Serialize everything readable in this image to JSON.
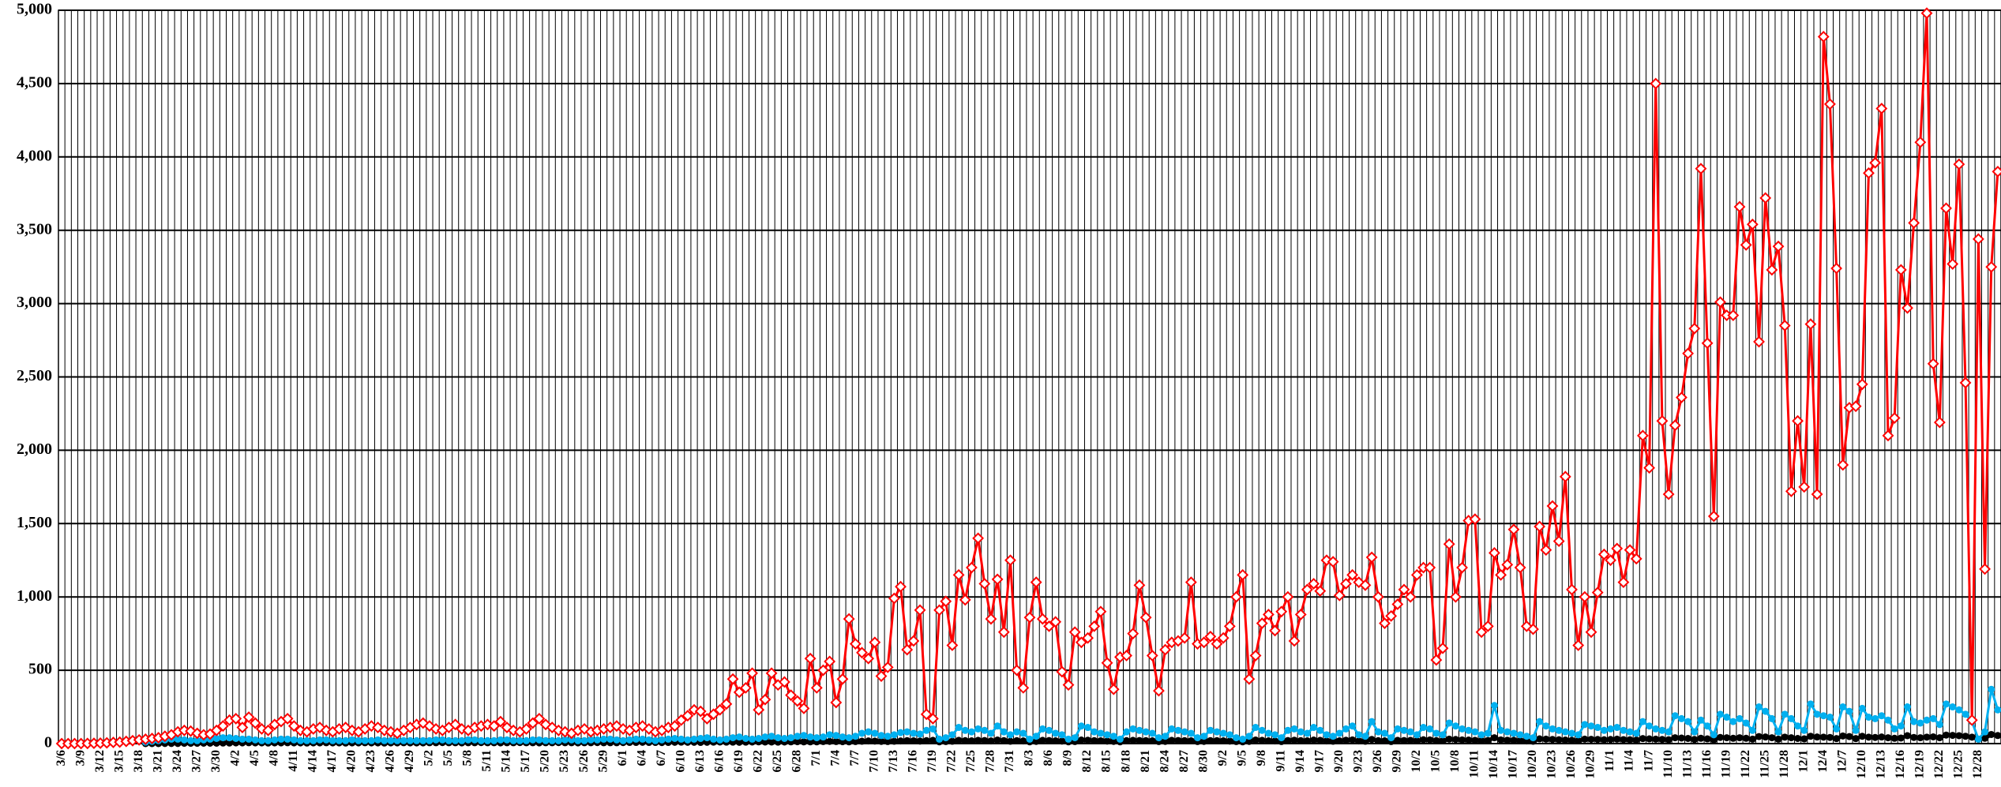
{
  "chart_data": {
    "type": "line",
    "categories": [
      "3/6",
      null,
      null,
      "3/9",
      null,
      null,
      "3/12",
      null,
      null,
      "3/15",
      null,
      null,
      "3/18",
      null,
      null,
      "3/21",
      null,
      null,
      "3/24",
      null,
      null,
      "3/27",
      null,
      null,
      "3/30",
      null,
      null,
      "4/2",
      null,
      null,
      "4/5",
      null,
      null,
      "4/8",
      null,
      null,
      "4/11",
      null,
      null,
      "4/14",
      null,
      null,
      "4/17",
      null,
      null,
      "4/20",
      null,
      null,
      "4/23",
      null,
      null,
      "4/26",
      null,
      null,
      "4/29",
      null,
      null,
      "5/2",
      null,
      null,
      "5/5",
      null,
      null,
      "5/8",
      null,
      null,
      "5/11",
      null,
      null,
      "5/14",
      null,
      null,
      "5/17",
      null,
      null,
      "5/20",
      null,
      null,
      "5/23",
      null,
      null,
      "5/26",
      null,
      null,
      "5/29",
      null,
      null,
      "6/1",
      null,
      null,
      "6/4",
      null,
      null,
      "6/7",
      null,
      null,
      "6/10",
      null,
      null,
      "6/13",
      null,
      null,
      "6/16",
      null,
      null,
      "6/19",
      null,
      null,
      "6/22",
      null,
      null,
      "6/25",
      null,
      null,
      "6/28",
      null,
      null,
      "7/1",
      null,
      null,
      "7/4",
      null,
      null,
      "7/7",
      null,
      null,
      "7/10",
      null,
      null,
      "7/13",
      null,
      null,
      "7/16",
      null,
      null,
      "7/19",
      null,
      null,
      "7/22",
      null,
      null,
      "7/25",
      null,
      null,
      "7/28",
      null,
      null,
      "7/31",
      null,
      null,
      "8/3",
      null,
      null,
      "8/6",
      null,
      null,
      "8/9",
      null,
      null,
      "8/12",
      null,
      null,
      "8/15",
      null,
      null,
      "8/18",
      null,
      null,
      "8/21",
      null,
      null,
      "8/24",
      null,
      null,
      "8/27",
      null,
      null,
      "8/30",
      null,
      null,
      "9/2",
      null,
      null,
      "9/5",
      null,
      null,
      "9/8",
      null,
      null,
      "9/11",
      null,
      null,
      "9/14",
      null,
      null,
      "9/17",
      null,
      null,
      "9/20",
      null,
      null,
      "9/23",
      null,
      null,
      "9/26",
      null,
      null,
      "9/29",
      null,
      null,
      "10/2",
      null,
      null,
      "10/5",
      null,
      null,
      "10/8",
      null,
      null,
      "10/11",
      null,
      null,
      "10/14",
      null,
      null,
      "10/17",
      null,
      null,
      "10/20",
      null,
      null,
      "10/23",
      null,
      null,
      "10/26",
      null,
      null,
      "10/29",
      null,
      null,
      "11/1",
      null,
      null,
      "11/4",
      null,
      null,
      "11/7",
      null,
      null,
      "11/10",
      null,
      null,
      "11/13",
      null,
      null,
      "11/16",
      null,
      null,
      "11/19",
      null,
      null,
      "11/22",
      null,
      null,
      "11/25",
      null,
      null,
      "11/28",
      null,
      null,
      "12/1",
      null,
      null,
      "12/4",
      null,
      null,
      "12/7",
      null,
      null,
      "12/10",
      null,
      null,
      "12/13",
      null,
      null,
      "12/16",
      null,
      null,
      "12/19",
      null,
      null,
      "12/22",
      null,
      null,
      "12/25",
      null,
      null,
      "12/28",
      null,
      null,
      null
    ],
    "series": [
      {
        "color": "#ff0000",
        "marker": "diamond",
        "values": [
          0,
          0,
          0,
          0,
          1,
          2,
          3,
          5,
          8,
          10,
          15,
          20,
          25,
          30,
          35,
          40,
          50,
          60,
          80,
          90,
          85,
          70,
          60,
          65,
          90,
          120,
          160,
          170,
          110,
          180,
          140,
          100,
          90,
          130,
          150,
          170,
          120,
          90,
          80,
          100,
          110,
          90,
          80,
          100,
          110,
          90,
          80,
          100,
          120,
          110,
          90,
          80,
          70,
          90,
          110,
          130,
          140,
          120,
          100,
          90,
          110,
          130,
          100,
          90,
          110,
          120,
          130,
          120,
          150,
          110,
          90,
          80,
          100,
          140,
          170,
          130,
          110,
          90,
          80,
          70,
          90,
          100,
          80,
          90,
          100,
          110,
          120,
          100,
          90,
          110,
          120,
          100,
          80,
          90,
          110,
          120,
          160,
          190,
          230,
          220,
          170,
          200,
          230,
          270,
          440,
          350,
          380,
          480,
          230,
          300,
          480,
          400,
          420,
          330,
          290,
          240,
          580,
          380,
          500,
          560,
          280,
          440,
          850,
          680,
          620,
          580,
          690,
          460,
          520,
          990,
          1070,
          640,
          700,
          910,
          200,
          170,
          910,
          970,
          670,
          1150,
          980,
          1200,
          1400,
          1090,
          850,
          1120,
          760,
          1250,
          500,
          380,
          860,
          1100,
          850,
          800,
          830,
          490,
          400,
          760,
          690,
          720,
          800,
          900,
          550,
          370,
          590,
          600,
          750,
          1080,
          860,
          600,
          360,
          640,
          690,
          700,
          720,
          1100,
          680,
          690,
          730,
          680,
          720,
          800,
          1000,
          1150,
          440,
          600,
          820,
          880,
          770,
          900,
          1000,
          700,
          880,
          1050,
          1090,
          1040,
          1250,
          1240,
          1010,
          1090,
          1150,
          1100,
          1080,
          1270,
          1000,
          820,
          870,
          950,
          1050,
          1000,
          1150,
          1200,
          1200,
          570,
          650,
          1360,
          1000,
          1200,
          1520,
          1530,
          760,
          800,
          1300,
          1150,
          1220,
          1460,
          1200,
          800,
          780,
          1480,
          1320,
          1620,
          1380,
          1820,
          1050,
          670,
          1000,
          760,
          1030,
          1290,
          1250,
          1330,
          1100,
          1320,
          1260,
          2100,
          1880,
          4500,
          2200,
          1700,
          2170,
          2360,
          2660,
          2830,
          3920,
          2730,
          1550,
          3010,
          2920,
          2920,
          3660,
          3400,
          3540,
          2740,
          3720,
          3230,
          3390,
          2850,
          1720,
          2200,
          1750,
          2860,
          1700,
          4820,
          4360,
          3240,
          1900,
          2290,
          2300,
          2450,
          3890,
          3960,
          4330,
          2100,
          2220,
          3230,
          2970,
          3550,
          4100,
          4980,
          2590,
          2190,
          3650,
          3270,
          3950,
          2460,
          160,
          3440,
          1190,
          3250,
          3900
        ]
      },
      {
        "color": "#00b0f0",
        "marker": "circle",
        "values": [
          null,
          null,
          null,
          null,
          null,
          null,
          null,
          null,
          null,
          null,
          null,
          null,
          null,
          10,
          15,
          20,
          25,
          30,
          30,
          25,
          20,
          20,
          25,
          30,
          35,
          40,
          40,
          35,
          30,
          30,
          25,
          20,
          20,
          25,
          30,
          30,
          25,
          20,
          20,
          20,
          25,
          25,
          20,
          20,
          20,
          25,
          20,
          20,
          20,
          25,
          20,
          20,
          20,
          20,
          20,
          20,
          20,
          20,
          25,
          25,
          20,
          20,
          20,
          25,
          25,
          20,
          20,
          20,
          25,
          25,
          20,
          20,
          20,
          25,
          25,
          20,
          20,
          20,
          25,
          25,
          20,
          20,
          25,
          25,
          30,
          30,
          25,
          20,
          25,
          30,
          30,
          25,
          20,
          25,
          30,
          35,
          30,
          25,
          30,
          35,
          40,
          30,
          25,
          30,
          40,
          45,
          35,
          30,
          35,
          45,
          50,
          40,
          35,
          40,
          50,
          55,
          45,
          40,
          45,
          60,
          55,
          45,
          40,
          50,
          70,
          80,
          70,
          55,
          50,
          60,
          75,
          80,
          70,
          65,
          90,
          100,
          30,
          40,
          60,
          110,
          90,
          80,
          100,
          90,
          70,
          120,
          80,
          60,
          80,
          70,
          30,
          50,
          100,
          90,
          70,
          60,
          30,
          40,
          120,
          110,
          80,
          70,
          60,
          50,
          30,
          80,
          100,
          90,
          80,
          70,
          40,
          50,
          100,
          90,
          80,
          70,
          40,
          50,
          90,
          80,
          70,
          60,
          40,
          30,
          50,
          110,
          90,
          70,
          60,
          40,
          90,
          100,
          80,
          70,
          110,
          90,
          60,
          50,
          70,
          100,
          120,
          60,
          50,
          150,
          80,
          70,
          40,
          100,
          90,
          80,
          60,
          110,
          100,
          70,
          60,
          140,
          120,
          100,
          90,
          80,
          60,
          70,
          260,
          90,
          80,
          70,
          60,
          50,
          40,
          150,
          120,
          100,
          90,
          80,
          70,
          60,
          130,
          120,
          110,
          90,
          100,
          110,
          90,
          80,
          70,
          150,
          120,
          100,
          90,
          80,
          190,
          170,
          150,
          80,
          160,
          120,
          60,
          200,
          180,
          150,
          170,
          140,
          90,
          250,
          220,
          170,
          80,
          200,
          170,
          120,
          90,
          270,
          200,
          190,
          180,
          100,
          250,
          220,
          90,
          240,
          180,
          170,
          190,
          160,
          100,
          120,
          250,
          150,
          140,
          160,
          170,
          130,
          270,
          250,
          230,
          200,
          150,
          30,
          80,
          370,
          230
        ]
      },
      {
        "color": "#000000",
        "marker": "circle",
        "values": [
          null,
          null,
          null,
          null,
          null,
          null,
          null,
          null,
          null,
          null,
          null,
          null,
          null,
          0,
          0,
          0,
          1,
          1,
          1,
          2,
          2,
          2,
          3,
          3,
          3,
          4,
          4,
          5,
          5,
          6,
          5,
          5,
          4,
          5,
          5,
          6,
          5,
          5,
          4,
          5,
          5,
          6,
          5,
          5,
          4,
          5,
          5,
          6,
          5,
          5,
          4,
          5,
          5,
          6,
          5,
          5,
          5,
          6,
          6,
          7,
          6,
          6,
          5,
          6,
          6,
          7,
          6,
          6,
          5,
          6,
          6,
          7,
          6,
          6,
          5,
          6,
          6,
          7,
          6,
          6,
          5,
          6,
          6,
          7,
          6,
          6,
          6,
          7,
          8,
          8,
          9,
          8,
          8,
          7,
          8,
          9,
          10,
          9,
          9,
          8,
          9,
          10,
          11,
          10,
          10,
          9,
          10,
          11,
          12,
          11,
          11,
          10,
          11,
          12,
          13,
          12,
          12,
          12,
          14,
          15,
          14,
          13,
          12,
          14,
          16,
          18,
          17,
          15,
          14,
          16,
          18,
          20,
          19,
          17,
          20,
          22,
          12,
          14,
          16,
          22,
          20,
          19,
          22,
          21,
          18,
          24,
          20,
          16,
          20,
          18,
          12,
          15,
          22,
          21,
          19,
          17,
          12,
          14,
          24,
          23,
          20,
          19,
          17,
          15,
          12,
          20,
          22,
          21,
          20,
          19,
          14,
          15,
          22,
          21,
          20,
          19,
          14,
          15,
          20,
          20,
          19,
          17,
          14,
          12,
          15,
          24,
          22,
          19,
          18,
          14,
          21,
          23,
          20,
          19,
          24,
          22,
          18,
          16,
          19,
          23,
          25,
          18,
          16,
          28,
          20,
          19,
          14,
          22,
          21,
          22,
          19,
          26,
          25,
          20,
          19,
          30,
          28,
          25,
          24,
          22,
          20,
          21,
          40,
          25,
          23,
          22,
          20,
          18,
          16,
          32,
          30,
          28,
          26,
          24,
          22,
          20,
          30,
          29,
          28,
          26,
          28,
          30,
          27,
          26,
          24,
          34,
          32,
          30,
          28,
          26,
          40,
          38,
          35,
          28,
          36,
          32,
          25,
          42,
          40,
          36,
          40,
          36,
          30,
          48,
          45,
          40,
          30,
          44,
          40,
          35,
          32,
          50,
          45,
          44,
          42,
          34,
          52,
          48,
          34,
          50,
          44,
          42,
          45,
          40,
          36,
          38,
          54,
          42,
          40,
          44,
          46,
          40,
          58,
          56,
          54,
          50,
          44,
          30,
          36,
          62,
          55
        ]
      }
    ],
    "ylim": [
      0,
      5000
    ],
    "yticks": [
      0,
      500,
      {
        "value": 1000,
        "label": "1,000"
      },
      {
        "value": 1500,
        "label": "1,500"
      },
      {
        "value": 2000,
        "label": "2,000"
      },
      {
        "value": 2500,
        "label": "2,500"
      },
      {
        "value": 3000,
        "label": "3,000"
      },
      {
        "value": 3500,
        "label": "3,500"
      },
      {
        "value": 4000,
        "label": "4,000"
      },
      {
        "value": 4500,
        "label": "4,500"
      },
      {
        "value": 5000,
        "label": "5,000"
      }
    ],
    "grid": true
  }
}
